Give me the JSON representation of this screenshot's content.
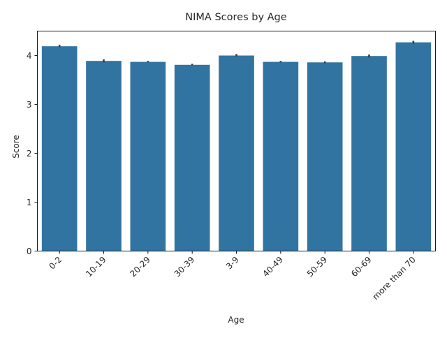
{
  "chart_data": {
    "type": "bar",
    "title": "NIMA Scores by Age",
    "xlabel": "Age",
    "ylabel": "Score",
    "categories": [
      "0-2",
      "10-19",
      "20-29",
      "30-39",
      "3-9",
      "40-49",
      "50-59",
      "60-69",
      "more than 70"
    ],
    "values": [
      4.19,
      3.89,
      3.87,
      3.81,
      4.0,
      3.87,
      3.86,
      3.99,
      4.27
    ],
    "error_low": [
      4.17,
      3.86,
      3.86,
      3.8,
      3.98,
      3.86,
      3.84,
      3.96,
      4.24
    ],
    "error_high": [
      4.22,
      3.92,
      3.89,
      3.83,
      4.03,
      3.89,
      3.88,
      4.02,
      4.3
    ],
    "ylim": [
      0,
      4.5
    ],
    "yticks": [
      0,
      1,
      2,
      3,
      4
    ],
    "grid": false,
    "colors": {
      "bar": "#3274a1",
      "error": "#3d3d3d",
      "axis": "#000000"
    }
  }
}
